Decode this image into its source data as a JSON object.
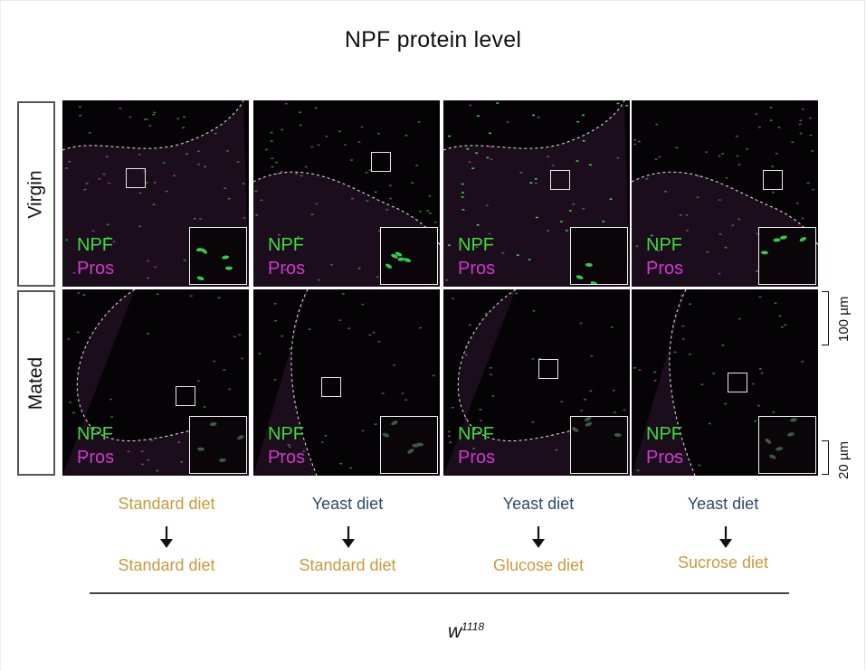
{
  "figure": {
    "title": "NPF protein level",
    "rows": [
      "Virgin",
      "Mated"
    ],
    "channel_labels": {
      "npf": "NPF",
      "pros": "Pros"
    },
    "channel_colors": {
      "npf": "#3ddc3a",
      "pros": "#d238cf"
    },
    "scale_bars": {
      "large": "100 µm",
      "small": "20 µm"
    },
    "conditions": [
      {
        "before": "Standard diet",
        "before_color": "#c89a3c",
        "after": "Standard diet",
        "after_color": "#c89a3c"
      },
      {
        "before": "Yeast diet",
        "before_color": "#2b4a6f",
        "after": "Standard diet",
        "after_color": "#c89a3c"
      },
      {
        "before": "Yeast diet",
        "before_color": "#2b4a6f",
        "after": "Glucose diet",
        "after_color": "#c89a3c"
      },
      {
        "before": "Yeast diet",
        "before_color": "#2b4a6f",
        "after": "Sucrose diet",
        "after_color": "#c89a3c"
      }
    ],
    "genotype_base": "w",
    "genotype_sup": "1118"
  }
}
